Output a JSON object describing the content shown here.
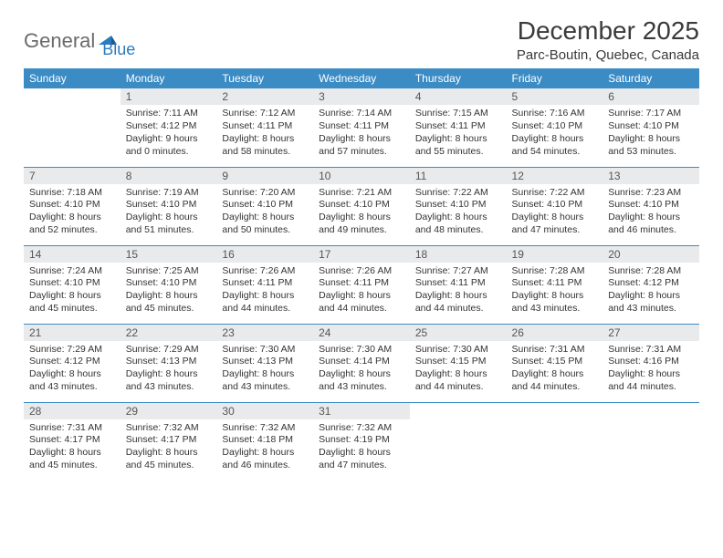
{
  "logo": {
    "general": "General",
    "blue": "Blue"
  },
  "title": "December 2025",
  "location": "Parc-Boutin, Quebec, Canada",
  "colors": {
    "header_bg": "#3b8bc4",
    "header_text": "#ffffff",
    "daynum_bg": "#e9eaec",
    "border": "#3b8bc4",
    "logo_gray": "#6b6b6b",
    "logo_blue": "#2b7bbf"
  },
  "weekdays": [
    "Sunday",
    "Monday",
    "Tuesday",
    "Wednesday",
    "Thursday",
    "Friday",
    "Saturday"
  ],
  "weeks": [
    [
      {
        "n": "",
        "sr": "",
        "ss": "",
        "dl": "",
        "empty": true
      },
      {
        "n": "1",
        "sr": "Sunrise: 7:11 AM",
        "ss": "Sunset: 4:12 PM",
        "dl": "Daylight: 9 hours and 0 minutes."
      },
      {
        "n": "2",
        "sr": "Sunrise: 7:12 AM",
        "ss": "Sunset: 4:11 PM",
        "dl": "Daylight: 8 hours and 58 minutes."
      },
      {
        "n": "3",
        "sr": "Sunrise: 7:14 AM",
        "ss": "Sunset: 4:11 PM",
        "dl": "Daylight: 8 hours and 57 minutes."
      },
      {
        "n": "4",
        "sr": "Sunrise: 7:15 AM",
        "ss": "Sunset: 4:11 PM",
        "dl": "Daylight: 8 hours and 55 minutes."
      },
      {
        "n": "5",
        "sr": "Sunrise: 7:16 AM",
        "ss": "Sunset: 4:10 PM",
        "dl": "Daylight: 8 hours and 54 minutes."
      },
      {
        "n": "6",
        "sr": "Sunrise: 7:17 AM",
        "ss": "Sunset: 4:10 PM",
        "dl": "Daylight: 8 hours and 53 minutes."
      }
    ],
    [
      {
        "n": "7",
        "sr": "Sunrise: 7:18 AM",
        "ss": "Sunset: 4:10 PM",
        "dl": "Daylight: 8 hours and 52 minutes."
      },
      {
        "n": "8",
        "sr": "Sunrise: 7:19 AM",
        "ss": "Sunset: 4:10 PM",
        "dl": "Daylight: 8 hours and 51 minutes."
      },
      {
        "n": "9",
        "sr": "Sunrise: 7:20 AM",
        "ss": "Sunset: 4:10 PM",
        "dl": "Daylight: 8 hours and 50 minutes."
      },
      {
        "n": "10",
        "sr": "Sunrise: 7:21 AM",
        "ss": "Sunset: 4:10 PM",
        "dl": "Daylight: 8 hours and 49 minutes."
      },
      {
        "n": "11",
        "sr": "Sunrise: 7:22 AM",
        "ss": "Sunset: 4:10 PM",
        "dl": "Daylight: 8 hours and 48 minutes."
      },
      {
        "n": "12",
        "sr": "Sunrise: 7:22 AM",
        "ss": "Sunset: 4:10 PM",
        "dl": "Daylight: 8 hours and 47 minutes."
      },
      {
        "n": "13",
        "sr": "Sunrise: 7:23 AM",
        "ss": "Sunset: 4:10 PM",
        "dl": "Daylight: 8 hours and 46 minutes."
      }
    ],
    [
      {
        "n": "14",
        "sr": "Sunrise: 7:24 AM",
        "ss": "Sunset: 4:10 PM",
        "dl": "Daylight: 8 hours and 45 minutes."
      },
      {
        "n": "15",
        "sr": "Sunrise: 7:25 AM",
        "ss": "Sunset: 4:10 PM",
        "dl": "Daylight: 8 hours and 45 minutes."
      },
      {
        "n": "16",
        "sr": "Sunrise: 7:26 AM",
        "ss": "Sunset: 4:11 PM",
        "dl": "Daylight: 8 hours and 44 minutes."
      },
      {
        "n": "17",
        "sr": "Sunrise: 7:26 AM",
        "ss": "Sunset: 4:11 PM",
        "dl": "Daylight: 8 hours and 44 minutes."
      },
      {
        "n": "18",
        "sr": "Sunrise: 7:27 AM",
        "ss": "Sunset: 4:11 PM",
        "dl": "Daylight: 8 hours and 44 minutes."
      },
      {
        "n": "19",
        "sr": "Sunrise: 7:28 AM",
        "ss": "Sunset: 4:11 PM",
        "dl": "Daylight: 8 hours and 43 minutes."
      },
      {
        "n": "20",
        "sr": "Sunrise: 7:28 AM",
        "ss": "Sunset: 4:12 PM",
        "dl": "Daylight: 8 hours and 43 minutes."
      }
    ],
    [
      {
        "n": "21",
        "sr": "Sunrise: 7:29 AM",
        "ss": "Sunset: 4:12 PM",
        "dl": "Daylight: 8 hours and 43 minutes."
      },
      {
        "n": "22",
        "sr": "Sunrise: 7:29 AM",
        "ss": "Sunset: 4:13 PM",
        "dl": "Daylight: 8 hours and 43 minutes."
      },
      {
        "n": "23",
        "sr": "Sunrise: 7:30 AM",
        "ss": "Sunset: 4:13 PM",
        "dl": "Daylight: 8 hours and 43 minutes."
      },
      {
        "n": "24",
        "sr": "Sunrise: 7:30 AM",
        "ss": "Sunset: 4:14 PM",
        "dl": "Daylight: 8 hours and 43 minutes."
      },
      {
        "n": "25",
        "sr": "Sunrise: 7:30 AM",
        "ss": "Sunset: 4:15 PM",
        "dl": "Daylight: 8 hours and 44 minutes."
      },
      {
        "n": "26",
        "sr": "Sunrise: 7:31 AM",
        "ss": "Sunset: 4:15 PM",
        "dl": "Daylight: 8 hours and 44 minutes."
      },
      {
        "n": "27",
        "sr": "Sunrise: 7:31 AM",
        "ss": "Sunset: 4:16 PM",
        "dl": "Daylight: 8 hours and 44 minutes."
      }
    ],
    [
      {
        "n": "28",
        "sr": "Sunrise: 7:31 AM",
        "ss": "Sunset: 4:17 PM",
        "dl": "Daylight: 8 hours and 45 minutes."
      },
      {
        "n": "29",
        "sr": "Sunrise: 7:32 AM",
        "ss": "Sunset: 4:17 PM",
        "dl": "Daylight: 8 hours and 45 minutes."
      },
      {
        "n": "30",
        "sr": "Sunrise: 7:32 AM",
        "ss": "Sunset: 4:18 PM",
        "dl": "Daylight: 8 hours and 46 minutes."
      },
      {
        "n": "31",
        "sr": "Sunrise: 7:32 AM",
        "ss": "Sunset: 4:19 PM",
        "dl": "Daylight: 8 hours and 47 minutes."
      },
      {
        "n": "",
        "sr": "",
        "ss": "",
        "dl": "",
        "empty": true
      },
      {
        "n": "",
        "sr": "",
        "ss": "",
        "dl": "",
        "empty": true
      },
      {
        "n": "",
        "sr": "",
        "ss": "",
        "dl": "",
        "empty": true
      }
    ]
  ]
}
